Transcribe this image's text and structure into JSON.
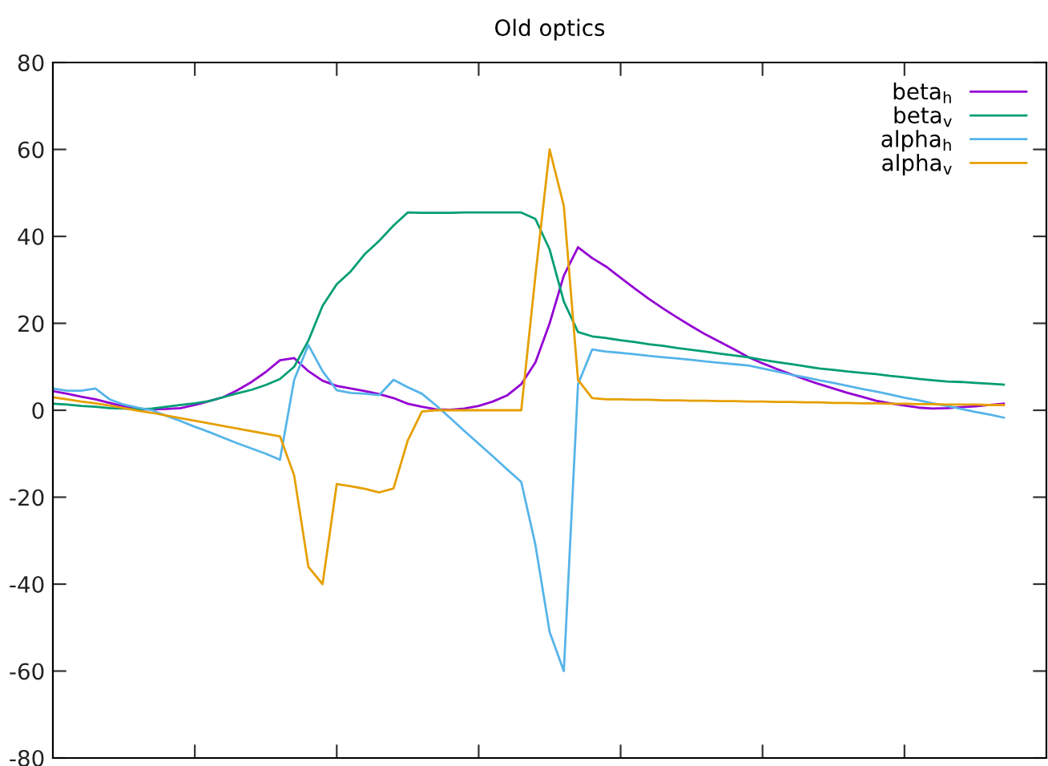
{
  "chart_data": {
    "type": "line",
    "title": "Old optics",
    "categories": [
      null,
      null,
      null,
      null,
      null,
      null,
      null,
      null,
      null,
      null,
      null,
      null,
      null,
      null,
      null,
      null,
      null,
      null,
      null,
      null,
      null,
      null,
      null,
      null,
      null,
      null,
      null,
      null,
      null,
      null,
      null,
      null,
      null,
      null,
      null,
      null,
      null,
      null,
      null,
      null,
      null,
      null,
      null,
      null,
      null,
      null,
      null,
      null,
      null,
      null,
      null,
      null,
      null,
      null,
      null,
      null,
      null,
      null,
      null,
      null,
      null,
      null,
      null,
      null,
      null,
      null,
      null,
      null
    ],
    "ylim": [
      -80,
      80
    ],
    "yticks": [
      -80,
      -60,
      -40,
      -20,
      0,
      20,
      40,
      60,
      80
    ],
    "grid": false,
    "legend": "top right",
    "marker": "none",
    "line_style": "solid",
    "series": [
      {
        "name": "beta$_{h}$",
        "color": "#9400d3",
        "values": [
          4.4,
          3.8,
          3.1,
          2.5,
          1.7,
          0.9,
          0.2,
          0.2,
          0.3,
          0.5,
          1.2,
          2.1,
          3,
          4.6,
          6.5,
          8.8,
          11.5,
          12,
          9,
          6.8,
          5.6,
          5,
          4.4,
          3.7,
          2.8,
          1.5,
          0.8,
          0.2,
          0.1,
          0.4,
          1,
          2,
          3.4,
          6,
          11,
          20,
          31,
          37.5,
          35,
          33,
          30.5,
          28,
          25.6,
          23.4,
          21.3,
          19.3,
          17.4,
          15.7,
          14,
          12.2,
          10.8,
          9.5,
          8.3,
          7.1,
          6,
          5,
          4,
          3.1,
          2.2,
          1.6,
          1.1,
          0.6,
          0.4,
          0.5,
          0.7,
          0.9,
          1.2,
          1.5
        ]
      },
      {
        "name": "beta$_{v}$",
        "color": "#009e73",
        "values": [
          1.5,
          1.3,
          1,
          0.8,
          0.5,
          0.4,
          0.2,
          0.4,
          0.8,
          1.2,
          1.6,
          2.1,
          3,
          3.9,
          4.7,
          5.8,
          7.2,
          10,
          16,
          24,
          29,
          32,
          36,
          39,
          42.5,
          45.5,
          45.4,
          45.4,
          45.4,
          45.5,
          45.5,
          45.5,
          45.5,
          45.5,
          44,
          37,
          25,
          18,
          17,
          16.6,
          16.1,
          15.7,
          15.2,
          14.8,
          14.3,
          13.9,
          13.5,
          13,
          12.6,
          12.2,
          11.6,
          11.1,
          10.6,
          10.1,
          9.6,
          9.3,
          8.9,
          8.6,
          8.3,
          7.9,
          7.6,
          7.2,
          6.9,
          6.6,
          6.5,
          6.3,
          6.1,
          5.9
        ]
      },
      {
        "name": "alpha$_{h}$",
        "color": "#56b4e9",
        "values": [
          5,
          4.5,
          4.5,
          5,
          2.5,
          1.3,
          0.6,
          0,
          -1.3,
          -2.5,
          -3.8,
          -5,
          -6.3,
          -7.6,
          -8.8,
          -10,
          -11.4,
          7,
          15,
          9,
          4.6,
          4,
          3.8,
          3.5,
          7,
          5.3,
          3.8,
          1.1,
          -1.8,
          -4.8,
          -7.7,
          -10.6,
          -13.6,
          -16.5,
          -31,
          -51,
          -60,
          6,
          14,
          13.5,
          13.2,
          12.9,
          12.5,
          12.2,
          11.9,
          11.6,
          11.2,
          10.9,
          10.6,
          10.3,
          9.6,
          8.9,
          8.2,
          7.6,
          6.9,
          6.3,
          5.6,
          4.9,
          4.3,
          3.6,
          2.9,
          2.3,
          1.6,
          1,
          0.3,
          -0.4,
          -1,
          -1.7
        ]
      },
      {
        "name": "alpha$_{v}$",
        "color": "#e69f00",
        "values": [
          3,
          2.5,
          2,
          1.6,
          1.1,
          0.5,
          -0.1,
          -0.6,
          -1.2,
          -1.8,
          -2.4,
          -3,
          -3.6,
          -4.2,
          -4.8,
          -5.4,
          -6,
          -15,
          -36,
          -40,
          -17,
          -17.5,
          -18.1,
          -18.9,
          -18,
          -7,
          -0.3,
          0,
          0,
          0,
          0,
          0,
          0,
          0,
          31,
          60,
          47,
          7,
          2.8,
          2.5,
          2.5,
          2.4,
          2.4,
          2.3,
          2.3,
          2.2,
          2.2,
          2.1,
          2.1,
          2,
          2,
          1.9,
          1.9,
          1.8,
          1.8,
          1.7,
          1.7,
          1.6,
          1.6,
          1.5,
          1.5,
          1.4,
          1.4,
          1.3,
          1.3,
          1.3,
          1.2,
          1.2
        ]
      }
    ]
  }
}
